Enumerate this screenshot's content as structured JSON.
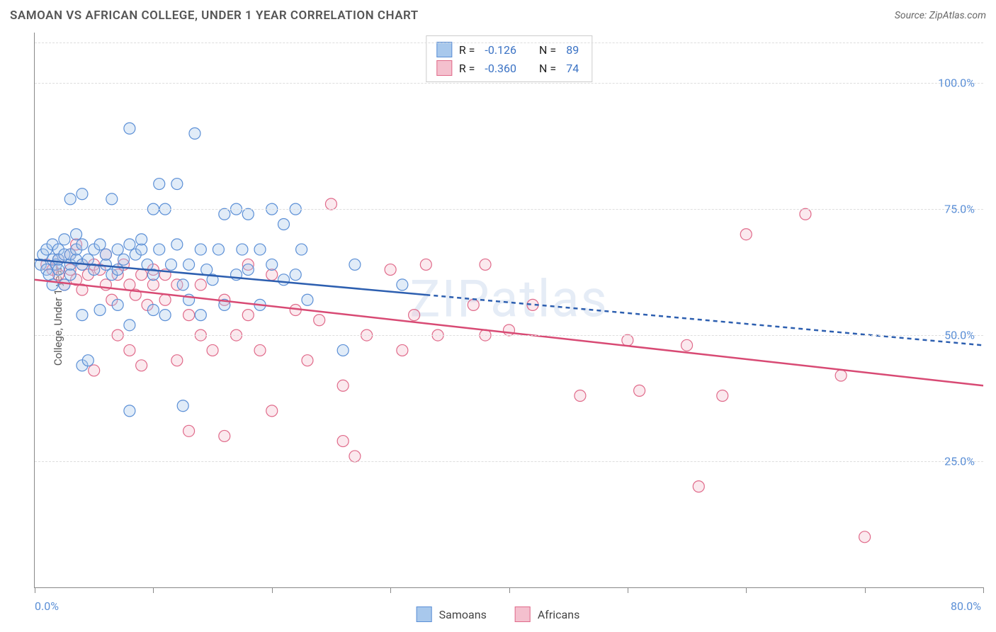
{
  "title": "SAMOAN VS AFRICAN COLLEGE, UNDER 1 YEAR CORRELATION CHART",
  "source": "Source: ZipAtlas.com",
  "watermark": "ZIPatlas",
  "y_axis_label": "College, Under 1 year",
  "chart": {
    "type": "scatter",
    "background_color": "#ffffff",
    "grid_color": "#dddddd",
    "axis_color": "#888888",
    "tick_label_color": "#5b8fd6",
    "xlim": [
      0,
      80
    ],
    "ylim": [
      0,
      110
    ],
    "x_ticks": [
      0,
      10,
      20,
      30,
      40,
      50,
      60,
      70,
      80
    ],
    "x_tick_labels": {
      "0": "0.0%",
      "80": "80.0%"
    },
    "y_ticks": [
      25,
      50,
      75,
      100
    ],
    "y_tick_labels": {
      "25": "25.0%",
      "50": "50.0%",
      "75": "75.0%",
      "100": "100.0%"
    },
    "marker_radius": 8,
    "marker_stroke_width": 1.2,
    "marker_fill_opacity": 0.35,
    "trend_line_width": 2.5,
    "trend_dash": "6,5"
  },
  "series": {
    "samoans": {
      "label": "Samoans",
      "fill_color": "#a8c8ec",
      "stroke_color": "#5b8fd6",
      "line_color": "#2d5fb0",
      "R": "-0.126",
      "N": "89",
      "trend_solid": {
        "x1": 0,
        "y1": 65,
        "x2": 33,
        "y2": 58
      },
      "trend_dash": {
        "x1": 33,
        "y1": 58,
        "x2": 80,
        "y2": 48
      },
      "points": [
        [
          0.5,
          64
        ],
        [
          0.7,
          66
        ],
        [
          1,
          67
        ],
        [
          1,
          63
        ],
        [
          1.2,
          62
        ],
        [
          1.5,
          65
        ],
        [
          1.5,
          68
        ],
        [
          1.5,
          60
        ],
        [
          1.8,
          64
        ],
        [
          2,
          67
        ],
        [
          2,
          65
        ],
        [
          2,
          63
        ],
        [
          2.5,
          66
        ],
        [
          2.5,
          60
        ],
        [
          2.5,
          69
        ],
        [
          3,
          77
        ],
        [
          3,
          64
        ],
        [
          3,
          62
        ],
        [
          3,
          66
        ],
        [
          3.5,
          65
        ],
        [
          3.5,
          67
        ],
        [
          3.5,
          70
        ],
        [
          4,
          54
        ],
        [
          4,
          64
        ],
        [
          4,
          68
        ],
        [
          4,
          44
        ],
        [
          4,
          78
        ],
        [
          4.5,
          65
        ],
        [
          4.5,
          45
        ],
        [
          5,
          67
        ],
        [
          5,
          63
        ],
        [
          5.5,
          68
        ],
        [
          5.5,
          55
        ],
        [
          6,
          64
        ],
        [
          6,
          66
        ],
        [
          6.5,
          77
        ],
        [
          6.5,
          62
        ],
        [
          7,
          63
        ],
        [
          7,
          67
        ],
        [
          7,
          56
        ],
        [
          7.5,
          65
        ],
        [
          8,
          68
        ],
        [
          8,
          91
        ],
        [
          8,
          35
        ],
        [
          8,
          52
        ],
        [
          8.5,
          66
        ],
        [
          9,
          67
        ],
        [
          9,
          69
        ],
        [
          9.5,
          64
        ],
        [
          10,
          62
        ],
        [
          10,
          75
        ],
        [
          10,
          55
        ],
        [
          10.5,
          67
        ],
        [
          10.5,
          80
        ],
        [
          11,
          54
        ],
        [
          11,
          75
        ],
        [
          11.5,
          64
        ],
        [
          12,
          80
        ],
        [
          12,
          68
        ],
        [
          12.5,
          60
        ],
        [
          12.5,
          36
        ],
        [
          13,
          57
        ],
        [
          13,
          64
        ],
        [
          13.5,
          90
        ],
        [
          14,
          67
        ],
        [
          14,
          54
        ],
        [
          14.5,
          63
        ],
        [
          15,
          61
        ],
        [
          15.5,
          67
        ],
        [
          16,
          74
        ],
        [
          16,
          56
        ],
        [
          17,
          62
        ],
        [
          17,
          75
        ],
        [
          17.5,
          67
        ],
        [
          18,
          74
        ],
        [
          18,
          63
        ],
        [
          19,
          56
        ],
        [
          19,
          67
        ],
        [
          20,
          64
        ],
        [
          20,
          75
        ],
        [
          21,
          61
        ],
        [
          21,
          72
        ],
        [
          22,
          62
        ],
        [
          22,
          75
        ],
        [
          22.5,
          67
        ],
        [
          23,
          57
        ],
        [
          26,
          47
        ],
        [
          27,
          64
        ],
        [
          31,
          60
        ]
      ]
    },
    "africans": {
      "label": "Africans",
      "fill_color": "#f4c0ce",
      "stroke_color": "#e06a8a",
      "line_color": "#d84a74",
      "R": "-0.360",
      "N": "74",
      "trend_solid": {
        "x1": 0,
        "y1": 61,
        "x2": 80,
        "y2": 40
      },
      "points": [
        [
          1,
          64
        ],
        [
          1.5,
          63
        ],
        [
          2,
          62
        ],
        [
          2,
          65
        ],
        [
          2.5,
          60
        ],
        [
          3,
          63
        ],
        [
          3,
          66
        ],
        [
          3.5,
          61
        ],
        [
          3.5,
          68
        ],
        [
          4,
          64
        ],
        [
          4,
          59
        ],
        [
          4.5,
          62
        ],
        [
          5,
          43
        ],
        [
          5,
          64
        ],
        [
          5.5,
          63
        ],
        [
          6,
          60
        ],
        [
          6,
          66
        ],
        [
          6.5,
          57
        ],
        [
          7,
          62
        ],
        [
          7,
          50
        ],
        [
          7.5,
          64
        ],
        [
          8,
          60
        ],
        [
          8,
          47
        ],
        [
          8.5,
          58
        ],
        [
          9,
          62
        ],
        [
          9,
          44
        ],
        [
          9.5,
          56
        ],
        [
          10,
          60
        ],
        [
          10,
          63
        ],
        [
          11,
          57
        ],
        [
          11,
          62
        ],
        [
          12,
          45
        ],
        [
          12,
          60
        ],
        [
          13,
          54
        ],
        [
          13,
          31
        ],
        [
          14,
          50
        ],
        [
          14,
          60
        ],
        [
          15,
          47
        ],
        [
          16,
          30
        ],
        [
          16,
          57
        ],
        [
          17,
          50
        ],
        [
          18,
          54
        ],
        [
          18,
          64
        ],
        [
          19,
          47
        ],
        [
          20,
          62
        ],
        [
          20,
          35
        ],
        [
          22,
          55
        ],
        [
          23,
          45
        ],
        [
          24,
          53
        ],
        [
          25,
          76
        ],
        [
          26,
          29
        ],
        [
          26,
          40
        ],
        [
          27,
          26
        ],
        [
          28,
          50
        ],
        [
          30,
          63
        ],
        [
          31,
          47
        ],
        [
          32,
          54
        ],
        [
          33,
          64
        ],
        [
          34,
          50
        ],
        [
          37,
          56
        ],
        [
          38,
          50
        ],
        [
          38,
          64
        ],
        [
          40,
          51
        ],
        [
          42,
          56
        ],
        [
          46,
          38
        ],
        [
          51,
          39
        ],
        [
          55,
          48
        ],
        [
          56,
          20
        ],
        [
          60,
          70
        ],
        [
          65,
          74
        ],
        [
          68,
          42
        ],
        [
          70,
          10
        ],
        [
          58,
          38
        ],
        [
          50,
          49
        ]
      ]
    }
  },
  "legend_box": {
    "R_label": "R =",
    "N_label": "N ="
  },
  "bottom_legend": {
    "samoans": "Samoans",
    "africans": "Africans"
  }
}
